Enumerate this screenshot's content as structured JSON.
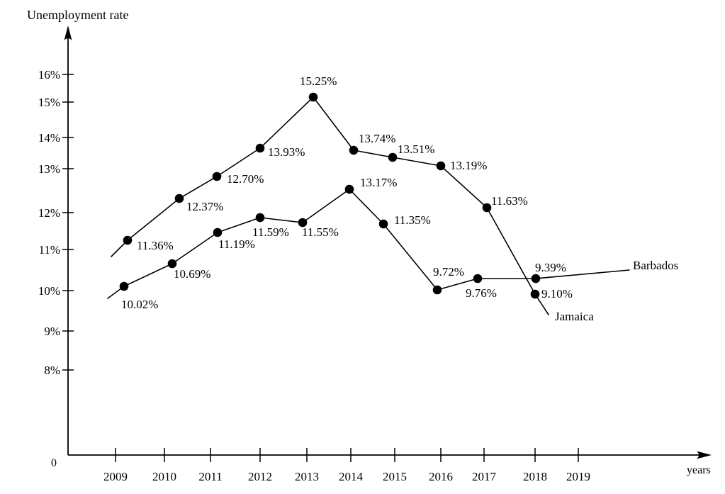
{
  "figure": {
    "background_color": "#ffffff",
    "ink_color": "#000000"
  },
  "chart_data": {
    "type": "line",
    "title": "",
    "ylabel": "Unemployment rate",
    "xlabel": "years",
    "origin_label": "0",
    "grid": false,
    "legend_position": "line-end-labels",
    "ylim": [
      0,
      17
    ],
    "y_tick_labels": [
      "16%",
      "15%",
      "14%",
      "13%",
      "12%",
      "11%",
      "10%",
      "9%",
      "8%"
    ],
    "y_tick_values": [
      16,
      15,
      14,
      13,
      12,
      11,
      10,
      9,
      8
    ],
    "x_tick_labels": [
      "2009",
      "2010",
      "2011",
      "2012",
      "2013",
      "2014",
      "2015",
      "2016",
      "2017",
      "2018",
      "2019"
    ],
    "categories": [
      2009,
      2010,
      2011,
      2012,
      2013,
      2014,
      2015,
      2016,
      2017,
      2018
    ],
    "series": [
      {
        "name": "Jamaica",
        "values": [
          11.36,
          12.37,
          12.7,
          13.93,
          15.25,
          13.74,
          13.51,
          13.19,
          11.63,
          9.1
        ],
        "point_labels": [
          "11.36%",
          "12.37%",
          "12.70%",
          "13.93%",
          "15.25%",
          "13.74%",
          "13.51%",
          "13.19%",
          "11.63%",
          "9.10%"
        ]
      },
      {
        "name": "Barbados",
        "values": [
          10.02,
          10.69,
          11.19,
          11.59,
          11.55,
          13.17,
          11.35,
          9.72,
          9.76,
          9.39
        ],
        "point_labels": [
          "10.02%",
          "10.69%",
          "11.19%",
          "11.59%",
          "11.55%",
          "13.17%",
          "11.35%",
          "9.72%",
          "9.76%",
          "9.39%"
        ]
      }
    ]
  }
}
